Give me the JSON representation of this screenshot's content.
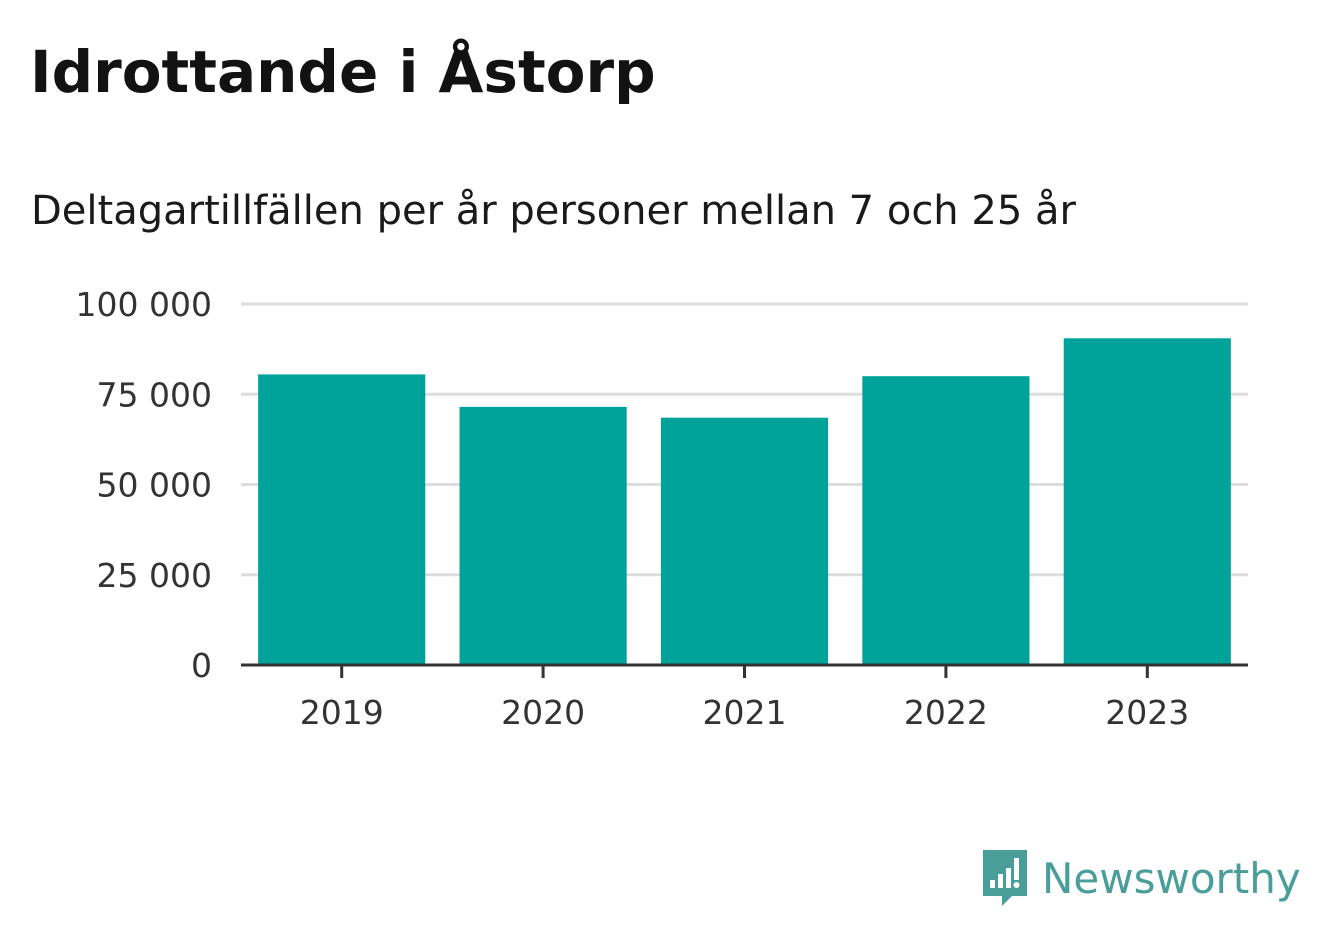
{
  "header": {
    "title": "Idrottande i Åstorp",
    "subtitle": "Deltagartillfällen per år personer mellan 7 och 25 år"
  },
  "brand": {
    "name": "Newsworthy",
    "icon": "newsworthy-logo-icon",
    "color": "#4a9e9a"
  },
  "chart_data": {
    "type": "bar",
    "categories": [
      "2019",
      "2020",
      "2021",
      "2022",
      "2023"
    ],
    "values": [
      80500,
      71500,
      68500,
      80000,
      90500
    ],
    "ylim": [
      0,
      100000
    ],
    "yticks": [
      0,
      25000,
      50000,
      75000,
      100000
    ],
    "ytick_labels": [
      "0",
      "25 000",
      "50 000",
      "75 000",
      "100 000"
    ],
    "grid": true,
    "bar_color": "#00a39a",
    "legend": "none"
  }
}
